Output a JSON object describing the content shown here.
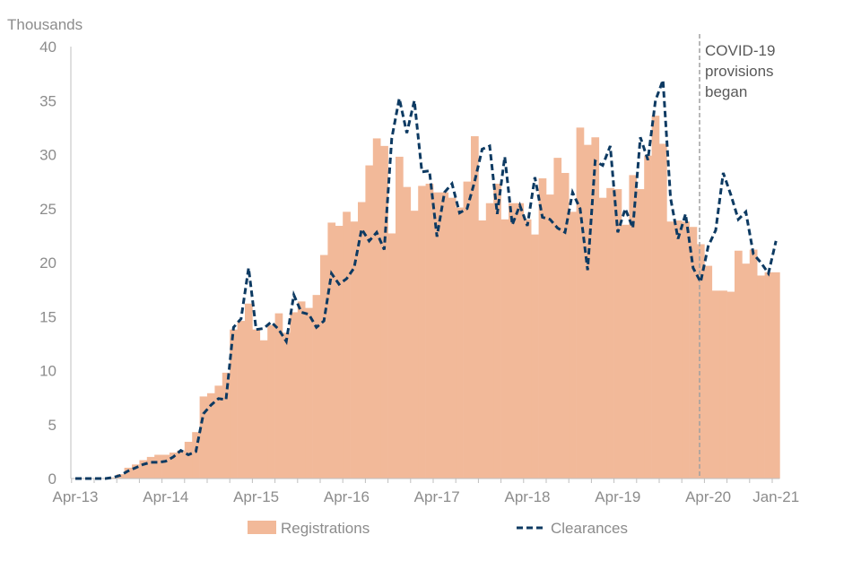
{
  "chart_data": {
    "type": "bar",
    "title": "",
    "ylabel": "Thousands",
    "xlabel": "",
    "ylim": [
      0,
      40
    ],
    "yticks": [
      "0",
      "5",
      "10",
      "15",
      "20",
      "25",
      "30",
      "35",
      "40"
    ],
    "xtick_labels": [
      "Apr-13",
      "Apr-14",
      "Apr-15",
      "Apr-16",
      "Apr-17",
      "Apr-18",
      "Apr-19",
      "Apr-20",
      "Jan-21"
    ],
    "xtick_month_index": [
      0,
      12,
      24,
      36,
      48,
      60,
      72,
      84,
      93
    ],
    "period": "monthly, Apr-13 to Jan-21",
    "annotation": {
      "lines": [
        "COVID-19",
        "provisions",
        "began"
      ],
      "month_index": 83
    },
    "legend_position": "bottom",
    "series": [
      {
        "name": "Registrations",
        "kind": "bar",
        "color": "#f2b999",
        "values": [
          0,
          0,
          0,
          0,
          0,
          0.1,
          0.4,
          1.0,
          1.3,
          1.7,
          2.0,
          2.2,
          2.2,
          2.4,
          2.6,
          3.4,
          4.3,
          7.6,
          7.9,
          8.6,
          9.8,
          13.8,
          14.6,
          16.2,
          13.8,
          12.8,
          14.2,
          15.3,
          13.5,
          15.4,
          16.4,
          15.8,
          17.0,
          20.7,
          23.7,
          23.4,
          24.7,
          23.8,
          25.6,
          29.0,
          31.5,
          30.8,
          22.7,
          29.8,
          27.0,
          24.8,
          27.1,
          27.3,
          26.5,
          26.5,
          26.0,
          25.1,
          27.5,
          31.7,
          23.9,
          25.5,
          27.3,
          24.0,
          25.5,
          25.5,
          24.0,
          22.6,
          27.8,
          26.3,
          29.7,
          28.3,
          24.7,
          32.5,
          30.9,
          31.6,
          26.0,
          26.9,
          26.8,
          23.5,
          28.1,
          26.8,
          29.9,
          33.6,
          31.0,
          23.8,
          23.9,
          23.8,
          23.3,
          21.7,
          19.7,
          17.4,
          17.4,
          17.3,
          21.1,
          19.9,
          21.2,
          18.8,
          19.1,
          19.1
        ]
      },
      {
        "name": "Clearances",
        "kind": "dashed-line",
        "color": "#0d3a62",
        "values": [
          0,
          0,
          0,
          0,
          0,
          0.1,
          0.3,
          0.7,
          1.0,
          1.3,
          1.5,
          1.5,
          1.6,
          2.0,
          2.6,
          2.2,
          2.5,
          6.0,
          6.8,
          7.4,
          7.3,
          14.0,
          14.8,
          19.5,
          13.8,
          13.9,
          14.5,
          13.8,
          12.7,
          17.0,
          15.4,
          15.2,
          14.0,
          14.6,
          19.0,
          18.0,
          18.5,
          19.5,
          23.1,
          22.0,
          22.8,
          21.2,
          31.5,
          35.2,
          32.0,
          35.0,
          28.4,
          28.5,
          22.4,
          26.5,
          27.3,
          24.6,
          25.0,
          27.5,
          30.5,
          30.8,
          24.5,
          29.8,
          23.5,
          25.3,
          23.4,
          27.9,
          24.2,
          24.0,
          23.2,
          22.8,
          26.5,
          25.0,
          19.3,
          29.4,
          29.0,
          30.8,
          22.8,
          25.0,
          23.2,
          31.6,
          29.5,
          35.0,
          36.9,
          26.0,
          22.2,
          24.5,
          19.5,
          18.2,
          21.5,
          23.0,
          28.3,
          26.3,
          24.0,
          24.7,
          20.8,
          20.0,
          19.0,
          22.0
        ]
      }
    ]
  }
}
